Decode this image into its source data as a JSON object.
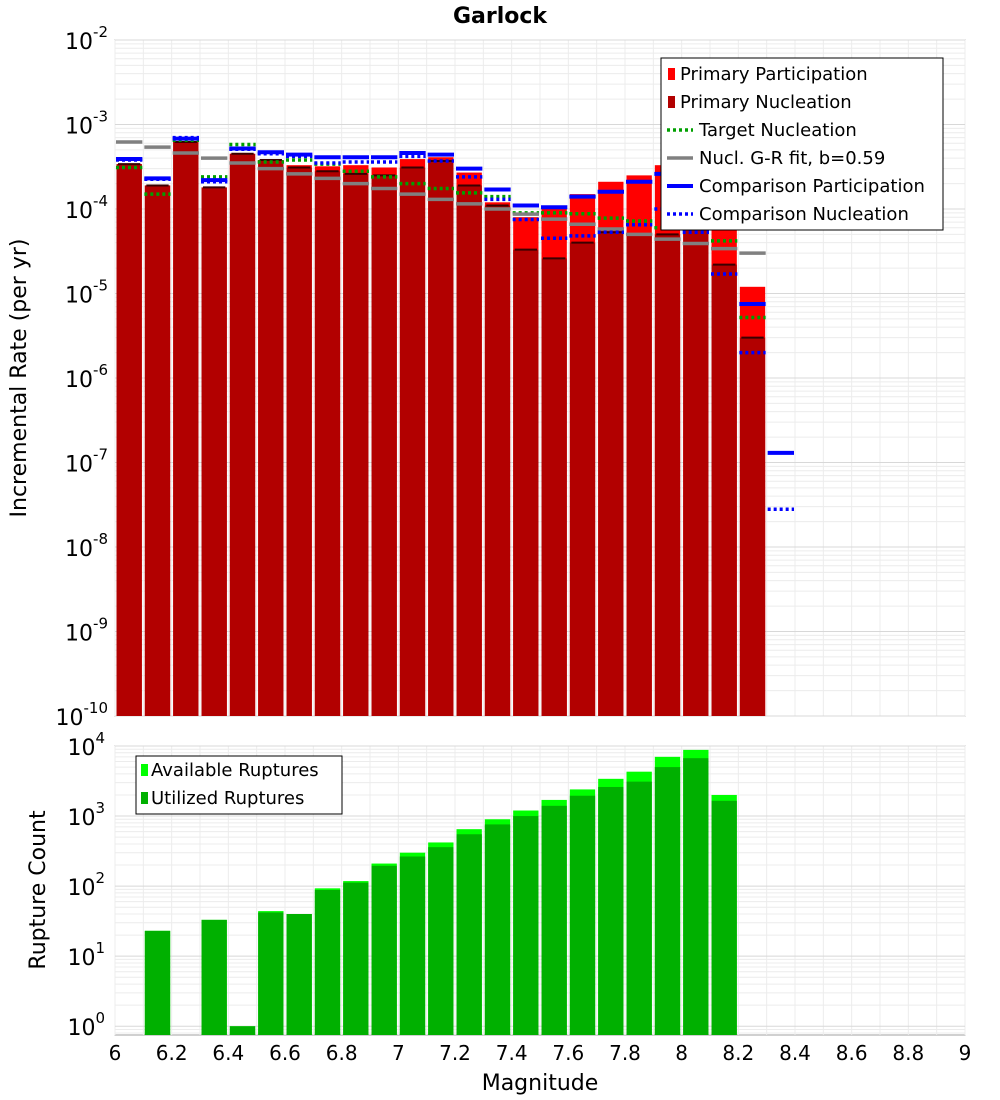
{
  "chart_data": [
    {
      "type": "bar",
      "title": "Garlock",
      "ylabel": "Incremental Rate (per yr)",
      "xlabel": "",
      "yscale": "log",
      "ylim": [
        1e-10,
        0.01
      ],
      "xlim": [
        6,
        9
      ],
      "grid": true,
      "legend_placement": "top-right",
      "bin_width": 0.1,
      "y_tick_labels": [
        {
          "base": "10",
          "exp": "-2",
          "value": 0.01
        },
        {
          "base": "10",
          "exp": "-3",
          "value": 0.001
        },
        {
          "base": "10",
          "exp": "-4",
          "value": 0.0001
        },
        {
          "base": "10",
          "exp": "-5",
          "value": 1e-05
        },
        {
          "base": "10",
          "exp": "-6",
          "value": 1e-06
        },
        {
          "base": "10",
          "exp": "-7",
          "value": 1e-07
        },
        {
          "base": "10",
          "exp": "-8",
          "value": 1e-08
        },
        {
          "base": "10",
          "exp": "-9",
          "value": 1e-09
        },
        {
          "base": "10",
          "exp": "-10",
          "value": 1e-10
        }
      ],
      "series": [
        {
          "name": "Primary Participation",
          "kind": "bar",
          "color": "#ff0000",
          "x": [
            6.05,
            6.15,
            6.25,
            6.35,
            6.45,
            6.55,
            6.65,
            6.75,
            6.85,
            6.95,
            7.05,
            7.15,
            7.25,
            7.35,
            7.45,
            7.55,
            7.65,
            7.75,
            7.85,
            7.95,
            8.05,
            8.15,
            8.25
          ],
          "values": [
            0.00034,
            0.00019,
            0.00062,
            0.00018,
            0.00045,
            0.00038,
            0.00033,
            0.00032,
            0.00033,
            0.00031,
            0.00039,
            0.00041,
            0.00027,
            0.00012,
            8e-05,
            0.000105,
            0.00015,
            0.00021,
            0.00025,
            0.00033,
            0.00019,
            9e-05,
            1.2e-05
          ]
        },
        {
          "name": "Primary Nucleation",
          "kind": "bar",
          "color": "#b20000",
          "x": [
            6.05,
            6.15,
            6.25,
            6.35,
            6.45,
            6.55,
            6.65,
            6.75,
            6.85,
            6.95,
            7.05,
            7.15,
            7.25,
            7.35,
            7.45,
            7.55,
            7.65,
            7.75,
            7.85,
            7.95,
            8.05,
            8.15,
            8.25
          ],
          "values": [
            0.00034,
            0.00019,
            0.00062,
            0.00018,
            0.00045,
            0.00038,
            0.00031,
            0.00028,
            0.00026,
            0.00025,
            0.00031,
            0.00037,
            0.00019,
            0.00011,
            3.3e-05,
            2.6e-05,
            4e-05,
            5.3e-05,
            5e-05,
            5e-05,
            6e-05,
            2.2e-05,
            3e-06
          ]
        },
        {
          "name": "Target Nucleation",
          "kind": "dotted-step",
          "color": "#00a000",
          "x": [
            6.05,
            6.15,
            6.25,
            6.35,
            6.45,
            6.55,
            6.65,
            6.75,
            6.85,
            6.95,
            7.05,
            7.15,
            7.25,
            7.35,
            7.45,
            7.55,
            7.65,
            7.75,
            7.85,
            7.95,
            8.05,
            8.15,
            8.25
          ],
          "values": [
            0.00031,
            0.00015,
            0.00065,
            0.00024,
            0.00058,
            0.00036,
            0.00038,
            0.00034,
            0.00028,
            0.00024,
            0.0002,
            0.000175,
            0.000155,
            0.00014,
            9e-05,
            9e-05,
            8.8e-05,
            7.8e-05,
            7.2e-05,
            6e-05,
            5.8e-05,
            4.2e-05,
            5.2e-06
          ]
        },
        {
          "name": "Nucl. G-R fit, b=0.59",
          "kind": "dash",
          "color": "#808080",
          "x": [
            6.05,
            6.15,
            6.25,
            6.35,
            6.45,
            6.55,
            6.65,
            6.75,
            6.85,
            6.95,
            7.05,
            7.15,
            7.25,
            7.35,
            7.45,
            7.55,
            7.65,
            7.75,
            7.85,
            7.95,
            8.05,
            8.15,
            8.25
          ],
          "values": [
            0.00062,
            0.00054,
            0.00046,
            0.0004,
            0.00035,
            0.0003,
            0.00026,
            0.00023,
            0.0002,
            0.000175,
            0.00015,
            0.00013,
            0.000115,
            0.0001,
            8.7e-05,
            7.6e-05,
            6.6e-05,
            5.8e-05,
            5e-05,
            4.4e-05,
            3.9e-05,
            3.4e-05,
            3e-05
          ]
        },
        {
          "name": "Comparison Participation",
          "kind": "solid-step",
          "color": "#0000ff",
          "x": [
            6.05,
            6.15,
            6.25,
            6.35,
            6.45,
            6.55,
            6.65,
            6.75,
            6.85,
            6.95,
            7.05,
            7.15,
            7.25,
            7.35,
            7.45,
            7.55,
            7.65,
            7.75,
            7.85,
            7.95,
            8.05,
            8.15,
            8.25,
            8.35
          ],
          "values": [
            0.00039,
            0.00023,
            0.00068,
            0.00022,
            0.00052,
            0.00047,
            0.00044,
            0.00041,
            0.00041,
            0.00041,
            0.00046,
            0.00044,
            0.0003,
            0.00017,
            0.00011,
            0.000105,
            0.00014,
            0.00016,
            0.00021,
            0.00026,
            0.00011,
            7e-05,
            7.5e-06,
            1.3e-07
          ]
        },
        {
          "name": "Comparison Nucleation",
          "kind": "dotted-step",
          "color": "#0000ff",
          "x": [
            6.05,
            6.15,
            6.25,
            6.35,
            6.45,
            6.55,
            6.65,
            6.75,
            6.85,
            6.95,
            7.05,
            7.15,
            7.25,
            7.35,
            7.45,
            7.55,
            7.65,
            7.75,
            7.85,
            7.95,
            8.05,
            8.15,
            8.25,
            8.35
          ],
          "values": [
            0.00038,
            0.000225,
            0.0007,
            0.00021,
            0.00051,
            0.00045,
            0.00042,
            0.00035,
            0.00036,
            0.00036,
            0.00042,
            0.00037,
            0.00024,
            0.00013,
            7.5e-05,
            4.5e-05,
            4.8e-05,
            5.3e-05,
            6.5e-05,
            0.0001,
            5.3e-05,
            1.7e-05,
            2e-06,
            2.8e-08
          ]
        }
      ]
    },
    {
      "type": "bar",
      "title": "",
      "ylabel": "Rupture Count",
      "xlabel": "Magnitude",
      "yscale": "log",
      "ylim": [
        0.75,
        10000
      ],
      "xlim": [
        6,
        9
      ],
      "grid": true,
      "legend_placement": "top-left",
      "bin_width": 0.1,
      "x_ticks": [
        "6",
        "6.2",
        "6.4",
        "6.6",
        "6.8",
        "7",
        "7.2",
        "7.4",
        "7.6",
        "7.8",
        "8",
        "8.2",
        "8.4",
        "8.6",
        "8.8",
        "9"
      ],
      "y_tick_labels": [
        {
          "base": "10",
          "exp": "4",
          "value": 10000
        },
        {
          "base": "10",
          "exp": "3",
          "value": 1000
        },
        {
          "base": "10",
          "exp": "2",
          "value": 100
        },
        {
          "base": "10",
          "exp": "1",
          "value": 10
        },
        {
          "base": "10",
          "exp": "0",
          "value": 1
        }
      ],
      "series": [
        {
          "name": "Available Ruptures",
          "kind": "bar",
          "color": "#00ff00",
          "x": [
            6.15,
            6.35,
            6.45,
            6.55,
            6.65,
            6.75,
            6.85,
            6.95,
            7.05,
            7.15,
            7.25,
            7.35,
            7.45,
            7.55,
            7.65,
            7.75,
            7.85,
            7.95,
            8.05,
            8.15
          ],
          "values": [
            23,
            33,
            1,
            44,
            40,
            93,
            118,
            210,
            300,
            420,
            650,
            900,
            1200,
            1700,
            2400,
            3400,
            4300,
            7000,
            8800,
            2000
          ]
        },
        {
          "name": "Utilized Ruptures",
          "kind": "bar",
          "color": "#00b000",
          "x": [
            6.15,
            6.35,
            6.45,
            6.55,
            6.65,
            6.75,
            6.85,
            6.95,
            7.05,
            7.15,
            7.25,
            7.35,
            7.45,
            7.55,
            7.65,
            7.75,
            7.85,
            7.95,
            8.05,
            8.15
          ],
          "values": [
            23,
            33,
            1,
            42,
            40,
            88,
            112,
            195,
            265,
            360,
            550,
            760,
            1000,
            1400,
            1950,
            2600,
            3100,
            5000,
            6700,
            1650
          ]
        }
      ]
    }
  ]
}
